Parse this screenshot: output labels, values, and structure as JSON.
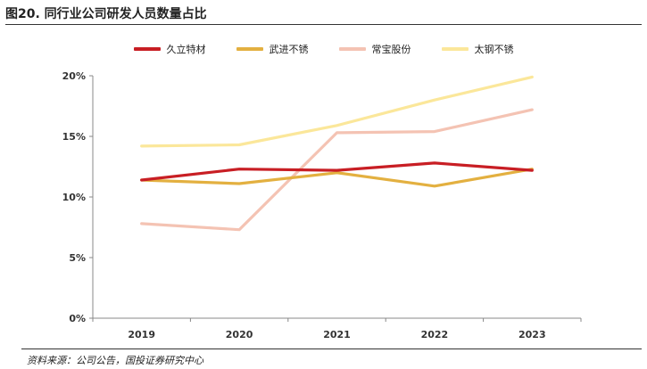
{
  "figure": {
    "title": "图20. 同行业公司研发人员数量占比",
    "source": "资料来源：公司公告，国投证券研究中心"
  },
  "chart_data": {
    "type": "line",
    "title": "同行业公司研发人员数量占比",
    "xlabel": "",
    "ylabel": "",
    "categories": [
      "2019",
      "2020",
      "2021",
      "2022",
      "2023"
    ],
    "ylim": [
      0,
      20
    ],
    "yticks": [
      0,
      5,
      10,
      15,
      20
    ],
    "ytick_labels": [
      "0%",
      "5%",
      "10%",
      "15%",
      "20%"
    ],
    "grid": false,
    "legend_position": "top-center",
    "series": [
      {
        "name": "久立特材",
        "color": "#c81e24",
        "values": [
          11.4,
          12.3,
          12.2,
          12.8,
          12.2
        ]
      },
      {
        "name": "武进不锈",
        "color": "#e3b040",
        "values": [
          11.4,
          11.1,
          12.0,
          10.9,
          12.3
        ]
      },
      {
        "name": "常宝股份",
        "color": "#f4c3b3",
        "values": [
          7.8,
          7.3,
          15.3,
          15.4,
          17.2
        ]
      },
      {
        "name": "太钢不锈",
        "color": "#fbe79a",
        "values": [
          14.2,
          14.3,
          15.9,
          18.0,
          19.9
        ]
      }
    ]
  }
}
